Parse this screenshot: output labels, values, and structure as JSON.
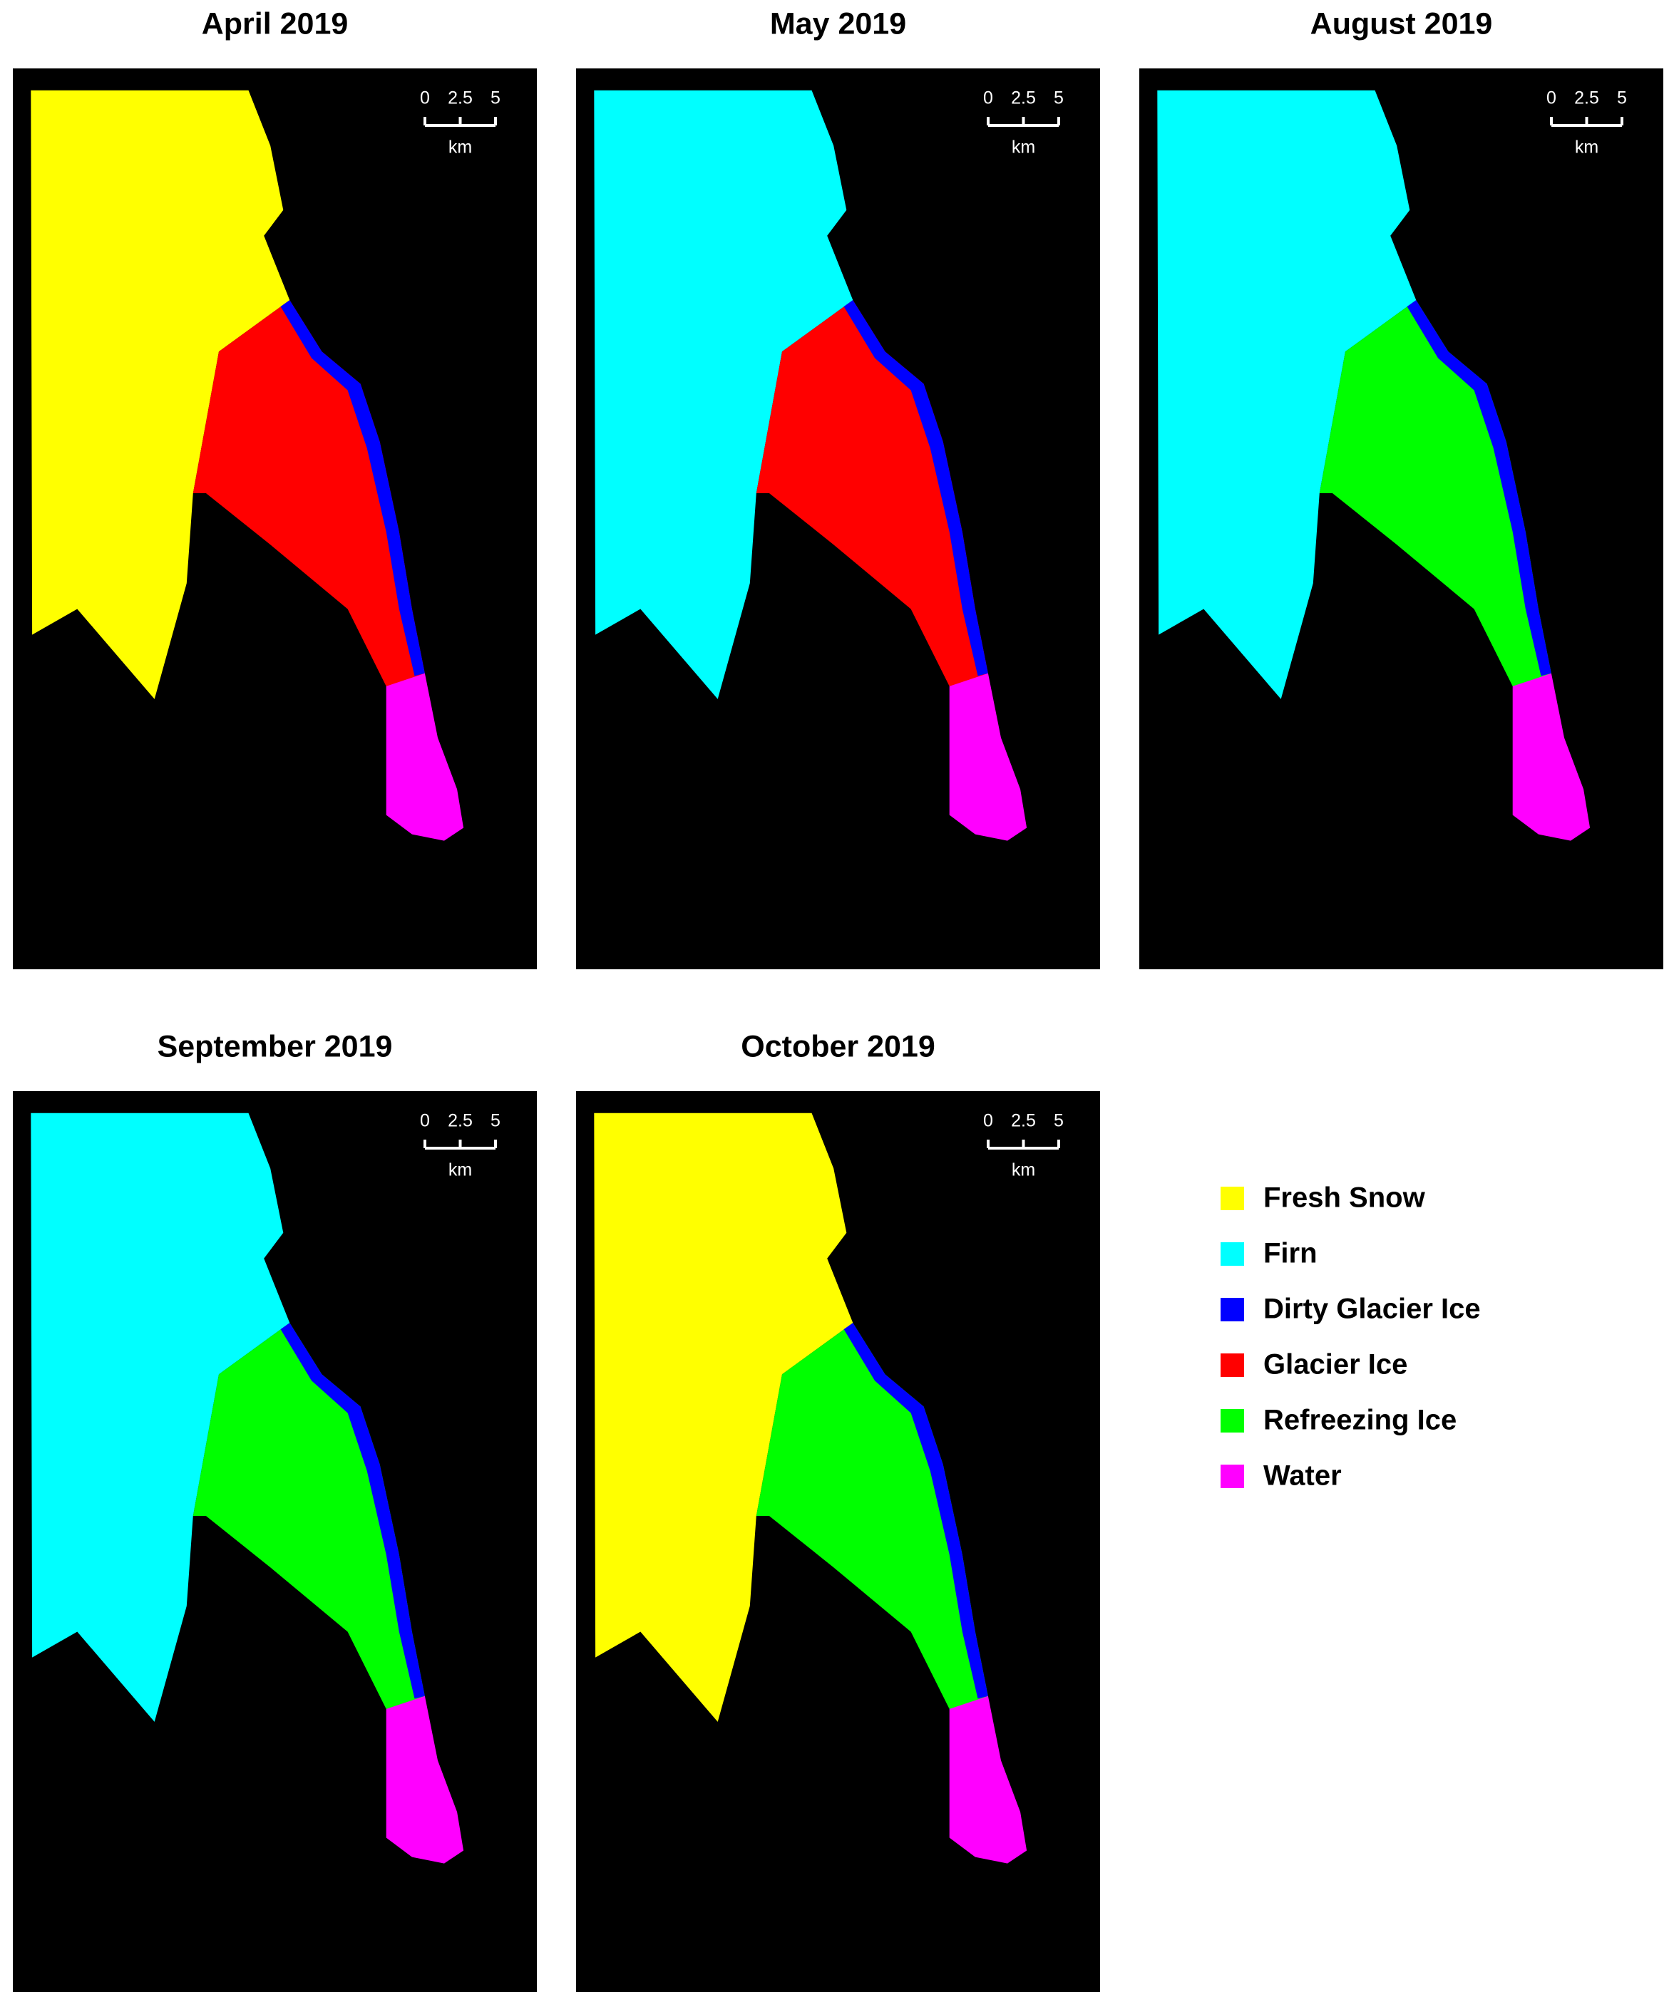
{
  "panels": [
    {
      "title": "April 2019",
      "scale_bar": {
        "ticks": [
          0,
          2.5,
          5
        ],
        "unit": "km"
      }
    },
    {
      "title": "May 2019",
      "scale_bar": {
        "ticks": [
          0,
          2.5,
          5
        ],
        "unit": "km"
      }
    },
    {
      "title": "August 2019",
      "scale_bar": {
        "ticks": [
          0,
          2.5,
          5
        ],
        "unit": "km"
      }
    },
    {
      "title": "September 2019",
      "scale_bar": {
        "ticks": [
          0,
          2.5,
          5
        ],
        "unit": "km"
      }
    },
    {
      "title": "October 2019",
      "scale_bar": {
        "ticks": [
          0,
          2.5,
          5
        ],
        "unit": "km"
      }
    }
  ],
  "legend": [
    {
      "label": "Fresh Snow",
      "color": "#ffff00"
    },
    {
      "label": "Firn",
      "color": "#00ffff"
    },
    {
      "label": "Dirty Glacier Ice",
      "color": "#0000ff"
    },
    {
      "label": "Glacier Ice",
      "color": "#ff0000"
    },
    {
      "label": "Refreezing Ice",
      "color": "#00ff00"
    },
    {
      "label": "Water",
      "color": "#ff00ff"
    }
  ]
}
